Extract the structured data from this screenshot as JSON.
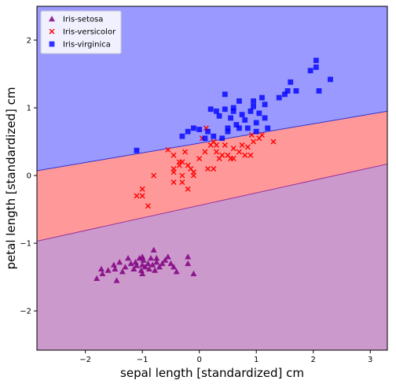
{
  "chart_data": {
    "type": "scatter",
    "title": "",
    "xlabel": "sepal length [standardized] cm",
    "ylabel": "petal length [standardized] cm",
    "xlim": [
      -2.85,
      3.3
    ],
    "ylim": [
      -2.58,
      2.5
    ],
    "xticks": [
      -2,
      -1,
      0,
      1,
      2,
      3
    ],
    "yticks": [
      -2,
      -1,
      0,
      1,
      2
    ],
    "xtick_labels": [
      "−2",
      "−1",
      "0",
      "1",
      "2",
      "3"
    ],
    "ytick_labels": [
      "−2",
      "−1",
      "0",
      "1",
      "2"
    ],
    "grid": false,
    "legend": "top-left",
    "decision_regions": [
      {
        "class": "Iris-virginica",
        "color": "#9999ff"
      },
      {
        "class": "Iris-versicolor",
        "color": "#ff9999"
      },
      {
        "class": "Iris-setosa",
        "color": "#cc99cc"
      }
    ],
    "boundaries": [
      {
        "between": [
          "Iris-versicolor",
          "Iris-virginica"
        ],
        "x": [
          -2.85,
          3.3
        ],
        "y": [
          0.07,
          0.95
        ],
        "color": "#3333cc"
      },
      {
        "between": [
          "Iris-setosa",
          "Iris-versicolor"
        ],
        "x": [
          -2.85,
          3.3
        ],
        "y": [
          -0.97,
          0.17
        ],
        "color": "#993399"
      }
    ],
    "series": [
      {
        "name": "Iris-setosa",
        "marker": "triangle",
        "color": "#800080",
        "points": [
          [
            -1.8,
            -1.52
          ],
          [
            -1.72,
            -1.38
          ],
          [
            -1.7,
            -1.45
          ],
          [
            -1.6,
            -1.4
          ],
          [
            -1.5,
            -1.32
          ],
          [
            -1.48,
            -1.38
          ],
          [
            -1.45,
            -1.55
          ],
          [
            -1.4,
            -1.28
          ],
          [
            -1.35,
            -1.42
          ],
          [
            -1.3,
            -1.35
          ],
          [
            -1.25,
            -1.22
          ],
          [
            -1.2,
            -1.3
          ],
          [
            -1.15,
            -1.38
          ],
          [
            -1.12,
            -1.28
          ],
          [
            -1.1,
            -1.33
          ],
          [
            -1.05,
            -1.22
          ],
          [
            -1.02,
            -1.4
          ],
          [
            -1.0,
            -1.32
          ],
          [
            -1.0,
            -1.45
          ],
          [
            -0.98,
            -1.25
          ],
          [
            -0.95,
            -1.35
          ],
          [
            -0.9,
            -1.3
          ],
          [
            -0.88,
            -1.38
          ],
          [
            -0.85,
            -1.22
          ],
          [
            -0.82,
            -1.32
          ],
          [
            -0.8,
            -1.1
          ],
          [
            -0.78,
            -1.4
          ],
          [
            -0.75,
            -1.28
          ],
          [
            -0.7,
            -1.35
          ],
          [
            -0.65,
            -1.3
          ],
          [
            -0.6,
            -1.25
          ],
          [
            -0.55,
            -1.2
          ],
          [
            -0.5,
            -1.3
          ],
          [
            -0.45,
            -1.35
          ],
          [
            -0.4,
            -1.42
          ],
          [
            -0.2,
            -1.2
          ],
          [
            -0.2,
            -1.3
          ],
          [
            -0.1,
            -1.45
          ],
          [
            -1.0,
            -1.2
          ],
          [
            -0.75,
            -1.22
          ]
        ]
      },
      {
        "name": "Iris-versicolor",
        "marker": "x",
        "color": "#ff0000",
        "points": [
          [
            -1.1,
            -0.3
          ],
          [
            -1.0,
            -0.2
          ],
          [
            -1.0,
            -0.3
          ],
          [
            -0.9,
            -0.45
          ],
          [
            -0.8,
            0.0
          ],
          [
            -0.55,
            0.38
          ],
          [
            -0.45,
            0.05
          ],
          [
            -0.45,
            0.1
          ],
          [
            -0.45,
            -0.1
          ],
          [
            -0.45,
            0.3
          ],
          [
            -0.35,
            0.2
          ],
          [
            -0.35,
            0.15
          ],
          [
            -0.3,
            0.0
          ],
          [
            -0.3,
            -0.1
          ],
          [
            -0.25,
            0.35
          ],
          [
            -0.2,
            0.15
          ],
          [
            -0.2,
            -0.2
          ],
          [
            -0.15,
            0.1
          ],
          [
            -0.1,
            0.0
          ],
          [
            -0.1,
            0.05
          ],
          [
            0.0,
            0.25
          ],
          [
            0.05,
            0.55
          ],
          [
            0.1,
            0.35
          ],
          [
            0.12,
            0.7
          ],
          [
            0.15,
            0.1
          ],
          [
            0.2,
            0.45
          ],
          [
            0.25,
            0.5
          ],
          [
            0.25,
            0.1
          ],
          [
            0.3,
            0.35
          ],
          [
            0.35,
            0.25
          ],
          [
            0.4,
            0.3
          ],
          [
            0.45,
            0.45
          ],
          [
            0.5,
            0.3
          ],
          [
            0.55,
            0.25
          ],
          [
            0.6,
            0.4
          ],
          [
            0.7,
            0.35
          ],
          [
            0.75,
            0.45
          ],
          [
            0.8,
            0.3
          ],
          [
            0.85,
            0.42
          ],
          [
            0.9,
            0.3
          ],
          [
            0.92,
            0.6
          ],
          [
            0.95,
            0.5
          ],
          [
            1.05,
            0.55
          ],
          [
            1.1,
            0.6
          ],
          [
            1.3,
            0.5
          ],
          [
            -0.3,
            0.2
          ],
          [
            0.3,
            0.45
          ],
          [
            0.6,
            0.25
          ]
        ]
      },
      {
        "name": "Iris-virginica",
        "marker": "square",
        "color": "#0000ff",
        "points": [
          [
            -1.1,
            0.37
          ],
          [
            -0.3,
            0.58
          ],
          [
            -0.2,
            0.65
          ],
          [
            -0.1,
            0.7
          ],
          [
            0.0,
            0.68
          ],
          [
            0.1,
            0.55
          ],
          [
            0.15,
            0.65
          ],
          [
            0.2,
            0.98
          ],
          [
            0.25,
            0.58
          ],
          [
            0.35,
            0.88
          ],
          [
            0.4,
            0.55
          ],
          [
            0.45,
            0.98
          ],
          [
            0.45,
            1.2
          ],
          [
            0.5,
            0.65
          ],
          [
            0.5,
            0.7
          ],
          [
            0.55,
            0.85
          ],
          [
            0.6,
            0.95
          ],
          [
            0.6,
            1.0
          ],
          [
            0.65,
            0.75
          ],
          [
            0.7,
            0.7
          ],
          [
            0.7,
            1.1
          ],
          [
            0.75,
            0.9
          ],
          [
            0.8,
            0.82
          ],
          [
            0.9,
            0.95
          ],
          [
            0.95,
            1.02
          ],
          [
            0.95,
            1.1
          ],
          [
            1.0,
            0.78
          ],
          [
            1.0,
            0.65
          ],
          [
            1.05,
            0.92
          ],
          [
            1.1,
            1.15
          ],
          [
            1.15,
            0.85
          ],
          [
            1.15,
            1.05
          ],
          [
            1.2,
            0.7
          ],
          [
            1.4,
            1.15
          ],
          [
            1.5,
            1.2
          ],
          [
            1.55,
            1.25
          ],
          [
            1.6,
            1.38
          ],
          [
            1.7,
            1.25
          ],
          [
            1.95,
            1.55
          ],
          [
            2.05,
            1.6
          ],
          [
            2.05,
            1.7
          ],
          [
            2.1,
            1.25
          ],
          [
            2.3,
            1.42
          ],
          [
            0.3,
            0.95
          ],
          [
            0.85,
            0.7
          ]
        ]
      }
    ]
  }
}
